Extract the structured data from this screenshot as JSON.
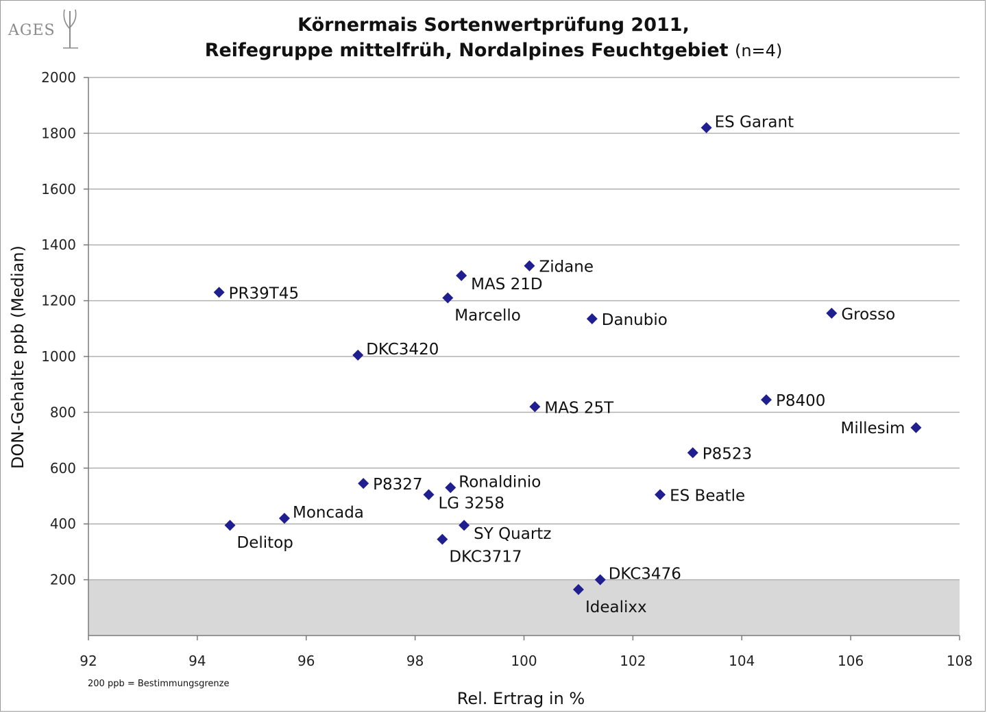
{
  "logo": {
    "text": "AGES"
  },
  "title": {
    "line1": "Körnermais Sortenwertprüfung 2011,",
    "line2": "Reifegruppe mittelfrüh, Nordalpines Feuchtgebiet",
    "line2_suffix": "(n=4)"
  },
  "footnote": "200 ppb = Bestimmungsgrenze",
  "colors": {
    "marker": "#1f1f8f",
    "grid": "#b0b0b0",
    "shade": "#d8d8d8"
  },
  "chart_data": {
    "type": "scatter",
    "title": "Körnermais Sortenwertprüfung 2011, Reifegruppe mittelfrüh, Nordalpines Feuchtgebiet (n=4)",
    "xlabel": "Rel. Ertrag in %",
    "ylabel": "DON-Gehalte ppb (Median)",
    "xlim": [
      92,
      108
    ],
    "ylim": [
      0,
      2000
    ],
    "x_ticks": [
      "92",
      "94",
      "96",
      "98",
      "100",
      "102",
      "104",
      "106",
      "108"
    ],
    "y_ticks": [
      "200",
      "400",
      "600",
      "800",
      "1000",
      "1200",
      "1400",
      "1600",
      "1800",
      "2000"
    ],
    "grid": true,
    "shaded_region": {
      "y_from": 0,
      "y_to": 200,
      "label": "200 ppb = Bestimmungsgrenze"
    },
    "points": [
      {
        "label": "ES Garant",
        "x": 103.35,
        "y": 1820,
        "pos": "right-up"
      },
      {
        "label": "Zidane",
        "x": 100.1,
        "y": 1325,
        "pos": "right"
      },
      {
        "label": "MAS 21D",
        "x": 98.85,
        "y": 1290,
        "pos": "right-down"
      },
      {
        "label": "PR39T45",
        "x": 94.4,
        "y": 1230,
        "pos": "right"
      },
      {
        "label": "Marcello",
        "x": 98.6,
        "y": 1210,
        "pos": "below-right"
      },
      {
        "label": "Danubio",
        "x": 101.25,
        "y": 1135,
        "pos": "right"
      },
      {
        "label": "Grosso",
        "x": 105.65,
        "y": 1155,
        "pos": "right"
      },
      {
        "label": "DKC3420",
        "x": 96.95,
        "y": 1005,
        "pos": "right-up"
      },
      {
        "label": "P8400",
        "x": 104.45,
        "y": 845,
        "pos": "right"
      },
      {
        "label": "MAS 25T",
        "x": 100.2,
        "y": 820,
        "pos": "right"
      },
      {
        "label": "Millesim",
        "x": 107.2,
        "y": 745,
        "pos": "left"
      },
      {
        "label": "P8523",
        "x": 103.1,
        "y": 655,
        "pos": "right"
      },
      {
        "label": "P8327",
        "x": 97.05,
        "y": 545,
        "pos": "right"
      },
      {
        "label": "Ronaldinio",
        "x": 98.65,
        "y": 530,
        "pos": "right-up"
      },
      {
        "label": "ES Beatle",
        "x": 102.5,
        "y": 505,
        "pos": "right"
      },
      {
        "label": "LG 3258",
        "x": 98.25,
        "y": 505,
        "pos": "right-down"
      },
      {
        "label": "Moncada",
        "x": 95.6,
        "y": 420,
        "pos": "right-up"
      },
      {
        "label": "Delitop",
        "x": 94.6,
        "y": 395,
        "pos": "below-right"
      },
      {
        "label": "SY Quartz",
        "x": 98.9,
        "y": 395,
        "pos": "right-down"
      },
      {
        "label": "DKC3717",
        "x": 98.5,
        "y": 345,
        "pos": "below-right"
      },
      {
        "label": "DKC3476",
        "x": 101.4,
        "y": 200,
        "pos": "right-up"
      },
      {
        "label": "Idealixx",
        "x": 101.0,
        "y": 165,
        "pos": "below-right"
      }
    ]
  }
}
